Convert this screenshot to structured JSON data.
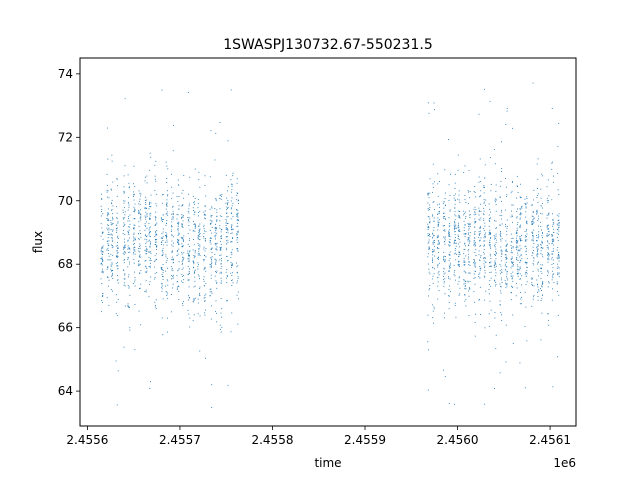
{
  "chart_data": {
    "type": "scatter",
    "title": "1SWASPJ130732.67-550231.5",
    "xlabel": "time",
    "ylabel": "flux",
    "x_offset_label": "1e6",
    "xlim": [
      2.455592,
      2.456128
    ],
    "ylim": [
      62.9,
      74.5
    ],
    "x_ticks": [
      2.4556,
      2.4557,
      2.4558,
      2.4559,
      2.456,
      2.4561
    ],
    "x_tick_labels": [
      "2.4556",
      "2.4557",
      "2.4558",
      "2.4559",
      "2.4560",
      "2.4561"
    ],
    "y_ticks": [
      64,
      66,
      68,
      70,
      72,
      74
    ],
    "y_tick_labels": [
      "64",
      "66",
      "68",
      "70",
      "72",
      "74"
    ],
    "grid": false,
    "marker_color": "#1f77b4",
    "observing_seasons": [
      {
        "x_start": 2.455615,
        "x_end": 2.455762,
        "flux_center": 68.7,
        "flux_spread": 1.0,
        "flux_min": 63.5,
        "flux_max": 74.0
      },
      {
        "x_start": 2.455968,
        "x_end": 2.456108,
        "flux_center": 68.6,
        "flux_spread": 1.0,
        "flux_min": 63.6,
        "flux_max": 74.0
      }
    ]
  }
}
